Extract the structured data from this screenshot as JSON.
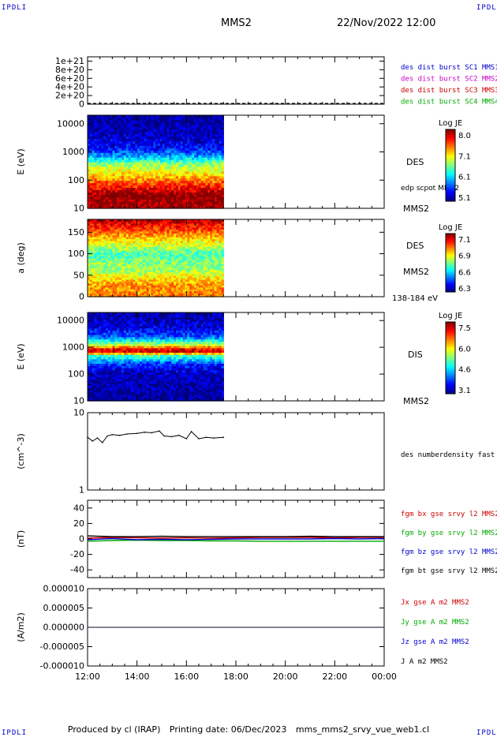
{
  "corner_tags": {
    "top_left": "IPDLI",
    "top_right": "IPDLI",
    "bottom_left": "IPDLI",
    "bottom_right": "IPDLI"
  },
  "header": {
    "spacecraft": "MMS2",
    "datetime": "22/Nov/2022 12:00"
  },
  "footer": {
    "produced_by": "Produced by cl (IRAP)",
    "printing_date": "Printing date: 06/Dec/2023",
    "file": "mms_mms2_srvy_vue_web1.cl"
  },
  "time_axis": {
    "ticks": [
      "12:00",
      "14:00",
      "16:00",
      "18:00",
      "20:00",
      "22:00",
      "00:00"
    ],
    "data_end_hour": 17.5
  },
  "chart_data": [
    {
      "type": "line",
      "panel": "dist-burst",
      "ylim": [
        0,
        1.1e+21
      ],
      "yticks": [
        "0",
        "2e+20",
        "4e+20",
        "6e+20",
        "8e+20",
        "1e+21"
      ],
      "legend": [
        {
          "label": "des dist burst SC1 MMS1",
          "color": "#0000cc"
        },
        {
          "label": "des dist burst SC2 MMS2",
          "color": "#cc00cc"
        },
        {
          "label": "des dist burst SC3 MMS3",
          "color": "#cc0000"
        },
        {
          "label": "des dist burst SC4 MMS4",
          "color": "#00aa00"
        }
      ]
    },
    {
      "type": "heatmap",
      "panel": "des-energy",
      "ylabel": "E (eV)",
      "yscale": "log",
      "ylim": [
        10,
        20000
      ],
      "yticks": [
        "10",
        "100",
        "1000",
        "10000"
      ],
      "right_labels": [
        "DES",
        "edp scpot MMS2",
        "MMS2"
      ],
      "colorbar": {
        "title": "Log JE",
        "ticks": [
          "8.0",
          "7.1",
          "6.1",
          "5.1"
        ]
      },
      "profile": [
        [
          10,
          0.95
        ],
        [
          30,
          1.0
        ],
        [
          60,
          0.85
        ],
        [
          150,
          0.68
        ],
        [
          400,
          0.5
        ],
        [
          700,
          0.3
        ],
        [
          1500,
          0.12
        ],
        [
          5000,
          0.05
        ],
        [
          20000,
          0.02
        ]
      ]
    },
    {
      "type": "heatmap",
      "panel": "des-pitch",
      "ylabel": "a (deg)",
      "ylim": [
        0,
        180
      ],
      "yticks": [
        "0",
        "50",
        "100",
        "150"
      ],
      "right_labels": [
        "DES",
        "MMS2",
        "138-184 eV"
      ],
      "colorbar": {
        "title": "Log JE",
        "ticks": [
          "7.1",
          "6.9",
          "6.6",
          "6.3"
        ]
      },
      "profile": [
        [
          0,
          0.75
        ],
        [
          30,
          0.72
        ],
        [
          60,
          0.55
        ],
        [
          100,
          0.45
        ],
        [
          140,
          0.7
        ],
        [
          180,
          0.95
        ]
      ]
    },
    {
      "type": "heatmap",
      "panel": "dis-energy",
      "ylabel": "E (eV)",
      "yscale": "log",
      "ylim": [
        10,
        20000
      ],
      "yticks": [
        "10",
        "100",
        "1000",
        "10000"
      ],
      "right_labels": [
        "DIS",
        "MMS2"
      ],
      "colorbar": {
        "title": "Log JE",
        "ticks": [
          "7.5",
          "6.0",
          "4.6",
          "3.1"
        ]
      },
      "profile": [
        [
          10,
          0.02
        ],
        [
          100,
          0.05
        ],
        [
          250,
          0.18
        ],
        [
          500,
          0.45
        ],
        [
          700,
          0.92
        ],
        [
          900,
          0.88
        ],
        [
          1300,
          0.55
        ],
        [
          2500,
          0.22
        ],
        [
          6000,
          0.08
        ],
        [
          20000,
          0.04
        ]
      ]
    },
    {
      "type": "line",
      "panel": "density",
      "ylabel": "(cm^-3)",
      "yscale": "log",
      "ylim": [
        1,
        10
      ],
      "yticks": [
        "1",
        "10"
      ],
      "legend": [
        {
          "label": "des numberdensity fast M",
          "color": "#000000"
        }
      ],
      "x": [
        12.0,
        12.2,
        12.4,
        12.6,
        12.8,
        13.0,
        13.3,
        13.6,
        14.0,
        14.3,
        14.6,
        14.9,
        15.1,
        15.4,
        15.7,
        16.0,
        16.2,
        16.5,
        16.8,
        17.1,
        17.5
      ],
      "y": [
        4.8,
        4.3,
        4.7,
        4.1,
        5.0,
        5.2,
        5.1,
        5.3,
        5.4,
        5.6,
        5.5,
        5.8,
        5.0,
        4.9,
        5.1,
        4.6,
        5.7,
        4.6,
        4.8,
        4.7,
        4.8
      ]
    },
    {
      "type": "line",
      "panel": "magnetic-field",
      "ylabel": "(nT)",
      "ylim": [
        -50,
        50
      ],
      "yticks": [
        "-40",
        "-20",
        "0",
        "20",
        "40"
      ],
      "x": [
        12,
        13,
        14,
        15,
        16,
        17,
        18,
        19,
        20,
        21,
        22,
        23,
        24
      ],
      "series": [
        {
          "name": "fgm bx gse srvy l2 MMS2",
          "color": "#cc0000",
          "values": [
            1,
            2,
            1.5,
            1,
            1.5,
            1,
            1.5,
            2,
            2,
            2,
            1.5,
            2,
            2
          ]
        },
        {
          "name": "fgm by gse srvy l2 MMS2",
          "color": "#00aa00",
          "values": [
            -3,
            -2,
            -1.5,
            -2,
            -2,
            -2.5,
            -2.5,
            -3,
            -3,
            -3,
            -3,
            -3,
            -3
          ]
        },
        {
          "name": "fgm bz gse srvy l2 MMS2",
          "color": "#0000cc",
          "values": [
            -1,
            0.5,
            -1,
            -0.5,
            -1,
            -0.5,
            0,
            0,
            0,
            0,
            0.5,
            0,
            0.5
          ]
        },
        {
          "name": "fgm bt gse srvy l2 MMS2",
          "color": "#000000",
          "values": [
            4,
            3,
            3,
            3.5,
            3,
            3,
            3,
            3,
            3,
            3.5,
            3,
            3,
            3
          ]
        }
      ]
    },
    {
      "type": "line",
      "panel": "current",
      "ylabel": "(A/m2)",
      "ylim": [
        -1e-05,
        1e-05
      ],
      "yticks": [
        "-0.000010",
        "-0.000005",
        "0.000000",
        "0.000005",
        "0.000010"
      ],
      "x": [
        12,
        24
      ],
      "series": [
        {
          "name": "Jx gse A m2 MMS2",
          "color": "#cc0000",
          "values": [
            0,
            0
          ]
        },
        {
          "name": "Jy gse A m2 MMS2",
          "color": "#00aa00",
          "values": [
            0,
            0
          ]
        },
        {
          "name": "Jz gse A m2 MMS2",
          "color": "#0000cc",
          "values": [
            0,
            0
          ]
        },
        {
          "name": "J A m2 MMS2",
          "color": "#000000",
          "values": [
            0,
            0
          ]
        }
      ]
    }
  ]
}
